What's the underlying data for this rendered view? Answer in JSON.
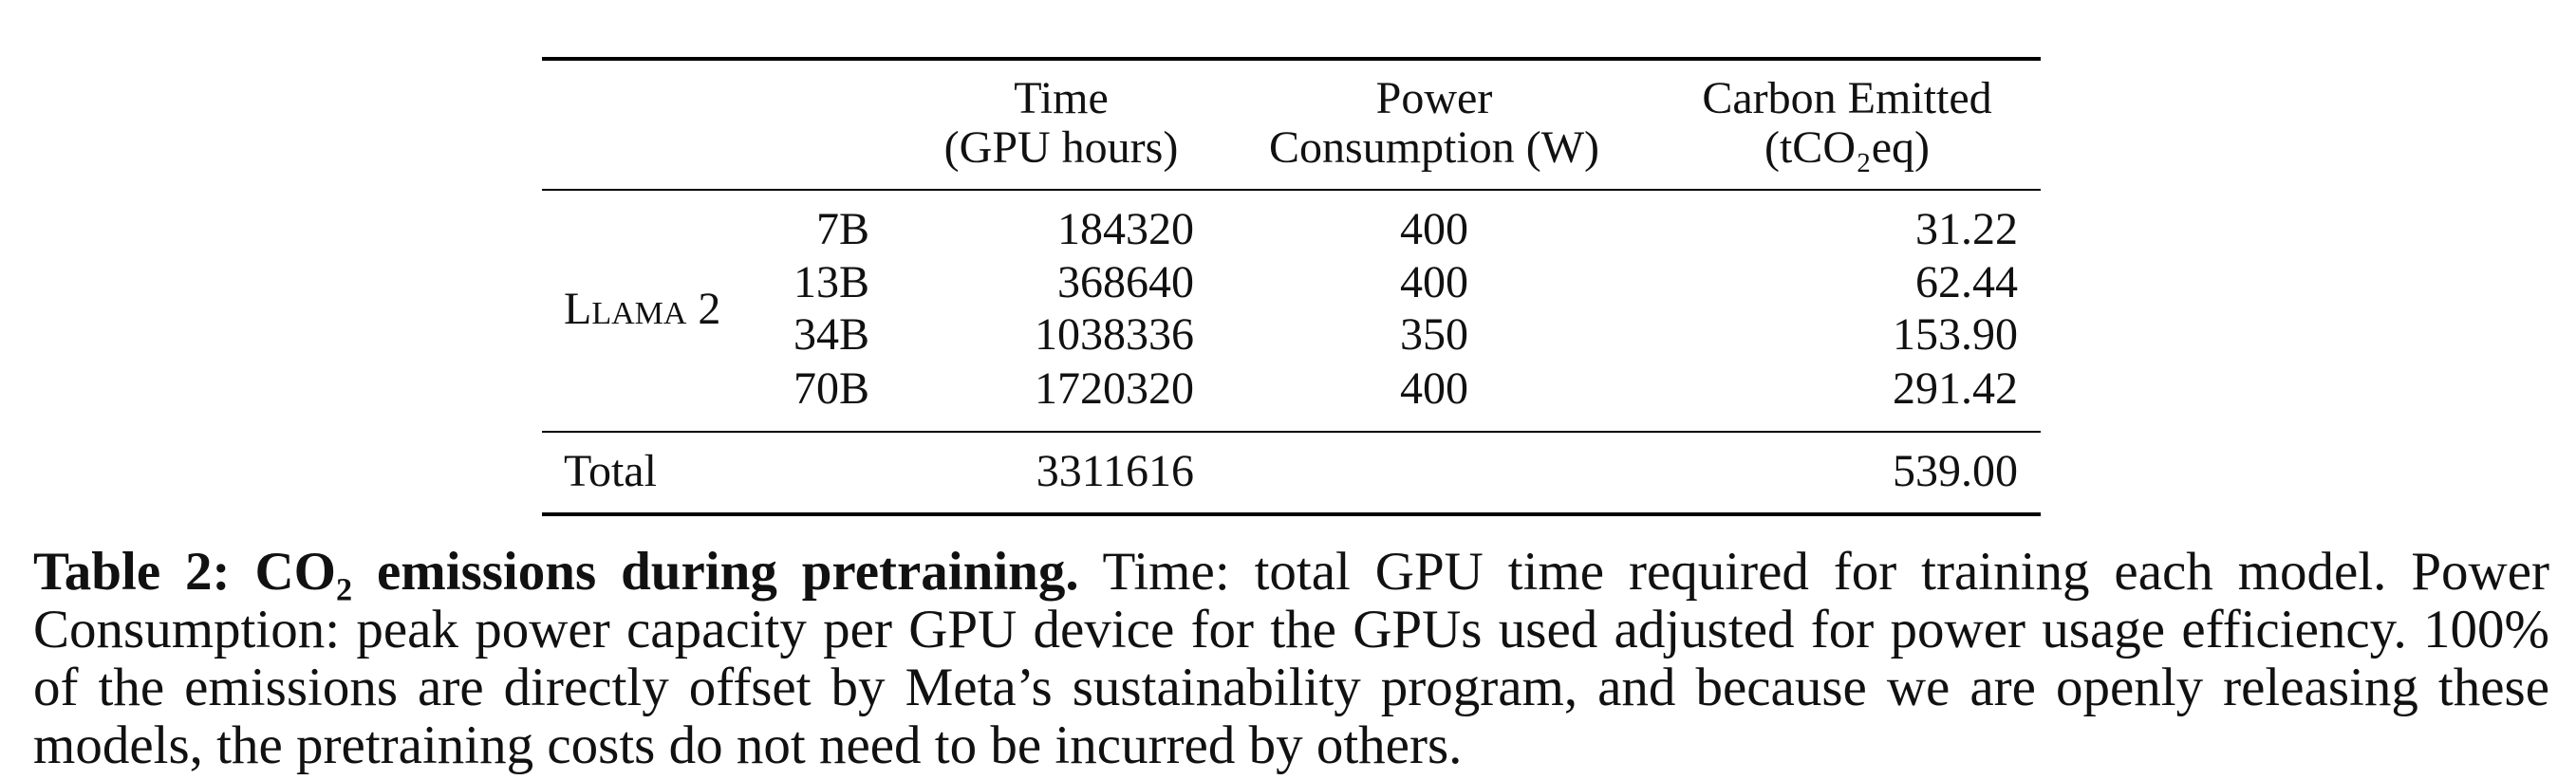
{
  "table": {
    "header": {
      "time": [
        "Time",
        "(GPU hours)"
      ],
      "power": [
        "Power",
        "Consumption (W)"
      ],
      "carbon": [
        "Carbon Emitted",
        "(tCO₂eq)"
      ]
    },
    "group": "Llama 2",
    "rows": [
      {
        "model": "7B",
        "time": "184320",
        "power": "400",
        "carbon": "31.22"
      },
      {
        "model": "13B",
        "time": "368640",
        "power": "400",
        "carbon": "62.44"
      },
      {
        "model": "34B",
        "time": "1038336",
        "power": "350",
        "carbon": "153.90"
      },
      {
        "model": "70B",
        "time": "1720320",
        "power": "400",
        "carbon": "291.42"
      }
    ],
    "total": {
      "label": "Total",
      "time": "3311616",
      "carbon": "539.00"
    }
  },
  "caption": {
    "title": "Table 2: CO₂ emissions during pretraining.",
    "text": "Time: total GPU time required for training each model. Power Consumption: peak power capacity per GPU device for the GPUs used adjusted for power usage efficiency. 100% of the emissions are directly offset by Meta’s sustainability program, and because we are openly releasing these models, the pretraining costs do not need to be incurred by others."
  }
}
